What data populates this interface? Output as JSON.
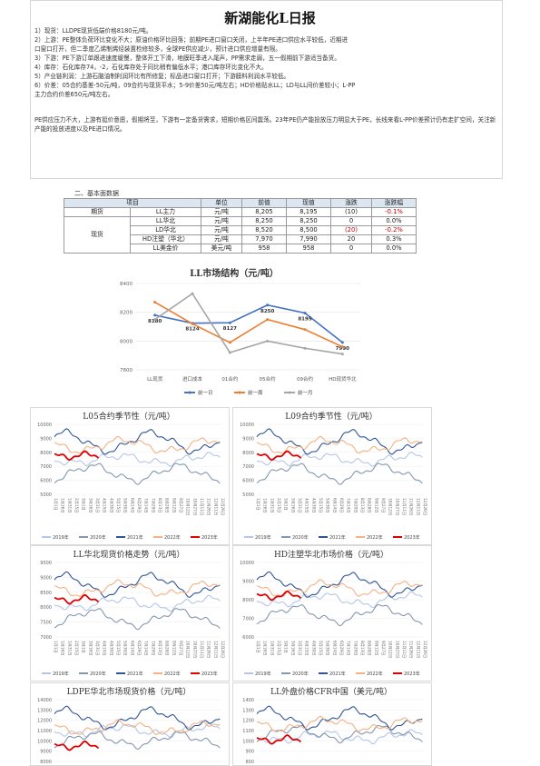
{
  "doc": {
    "title": "新湖能化L日报",
    "lines": [
      "1）现货：LLDPE现货低端价格8180元/吨。",
      "2）上游：PE整体负荷环比变化不大；原油价格环比回落；前期PE进口窗口关闭，上半年PE进口供应水平较低，近期进",
      "口窗口打开，但二季度乙烯制烯烃装置检修较多，全球PE供应减少，预计进口供应增量有限。",
      "3）下游：PE下游订单跟进速度缓慢，整体开工下滑，地膜旺季进入尾声，PP需求走弱，五一假期前下游适当备货。",
      "4）库存：石化库存74，-2，石化库存处于同比稍有偏低水平；港口库存环比变化不大。",
      "5）产业链利润：上游石脑油制利润环比有所修复；标品进口窗口打开；下游膜料利润水平较低。",
      "6）价差：05合约基差-50元/吨，09合约与现货平水；5-9价差50元/吨左右；HD价格贴水LL；LD与LL间价差较小；L-PP",
      "主力合约价差650元/吨左右。"
    ],
    "summary": "PE供应压力不大，上游有挺价意愿，假期将至，下游有一定备货需求，短期价格区间震荡。23年PE仍产能投放压力明显大于PE，长线来看L-PP价差预计仍有走扩空间，关注新产能的投放进度以及PE进口情况。",
    "section": "二、基本面数据"
  },
  "table": {
    "headers": [
      "项目",
      "单位",
      "前值",
      "现值",
      "涨跌",
      "涨跌幅"
    ],
    "futures_label": "期货",
    "spot_label": "现货",
    "rows": [
      {
        "name": "LL主力",
        "unit": "元/吨",
        "prev": "8,205",
        "cur": "8,195",
        "chg": "(10)",
        "pct": "-0.1%",
        "neg": true
      },
      {
        "name": "LL华北",
        "unit": "元/吨",
        "prev": "8,250",
        "cur": "8,250",
        "chg": "0",
        "pct": "0.0%",
        "neg": false
      },
      {
        "name": "LD华北",
        "unit": "元/吨",
        "prev": "8,520",
        "cur": "8,500",
        "chg": "(20)",
        "pct": "-0.2%",
        "neg": true
      },
      {
        "name": "HD注塑（华北）",
        "unit": "元/吨",
        "prev": "7,970",
        "cur": "7,990",
        "chg": "20",
        "pct": "0.3%",
        "neg": false
      },
      {
        "name": "LL美金价",
        "unit": "美元/吨",
        "prev": "958",
        "cur": "958",
        "chg": "0",
        "pct": "0.0%",
        "neg": false
      }
    ]
  },
  "colors": {
    "blue": "#4472c4",
    "orange": "#ed7d31",
    "gray": "#a5a5a5",
    "red": "#e00000"
  },
  "chart_data": [
    {
      "type": "line",
      "title": "LL市场结构（元/吨）",
      "categories": [
        "LL现货",
        "进口成本",
        "01合约",
        "05合约",
        "09合约",
        "HD现货华北"
      ],
      "ylim": [
        7800,
        8400
      ],
      "yticks": [
        "7800",
        "8000",
        "8200",
        "8400"
      ],
      "series": [
        {
          "name": "前一日",
          "color": "#4472c4",
          "values": [
            8180,
            8124,
            8127,
            8250,
            8195,
            7990
          ],
          "labels": [
            "8180",
            "8124",
            "8127",
            "8250",
            "8195",
            "7990"
          ]
        },
        {
          "name": "前一周",
          "color": "#ed7d31",
          "values": [
            8270,
            8120,
            7990,
            8150,
            8080,
            7960
          ]
        },
        {
          "name": "前一月",
          "color": "#a5a5a5",
          "values": [
            8150,
            8330,
            7920,
            8000,
            7950,
            7910
          ]
        }
      ]
    },
    {
      "type": "line",
      "title": "L05合约季节性（元/吨）",
      "yticks": [
        "5000",
        "6000",
        "7000",
        "8000",
        "9000",
        "10000"
      ],
      "legend": [
        "2019年",
        "2020年",
        "2021年",
        "2022年",
        "2023年"
      ]
    },
    {
      "type": "line",
      "title": "L09合约季节性（元/吨）",
      "yticks": [
        "5000",
        "6000",
        "7000",
        "8000",
        "9000",
        "10000"
      ],
      "legend": [
        "2019年",
        "2020年",
        "2021年",
        "2022年",
        "2023年"
      ]
    },
    {
      "type": "line",
      "title": "LL华北现货价格走势（元/吨）",
      "yticks": [
        "7000",
        "7500",
        "8000",
        "8500",
        "9000",
        "9500"
      ],
      "legend": [
        "2019年",
        "2020年",
        "2021年",
        "2022年",
        "2023年"
      ]
    },
    {
      "type": "line",
      "title": "HD注塑华北市场价格（元/吨）",
      "yticks": [
        "6000",
        "7000",
        "8000",
        "9000",
        "10000"
      ],
      "legend": [
        "2019年",
        "2020年",
        "2021年",
        "2022年",
        "2023年"
      ]
    },
    {
      "type": "line",
      "title": "LDPE华北市场现货价格（元/吨）",
      "yticks": [
        "8000",
        "9000",
        "10000",
        "11000",
        "12000",
        "13000",
        "14000"
      ],
      "legend": []
    },
    {
      "type": "line",
      "title": "LL外盘价格CFR中国（美元/吨）",
      "yticks": [
        "800",
        "900",
        "1000",
        "1100",
        "1200",
        "1300",
        "1400"
      ],
      "legend": []
    }
  ],
  "season_xlabels": [
    "1月1日",
    "1月16日",
    "1月31日",
    "2月15日",
    "3月1日",
    "3月16日",
    "3月31日",
    "4月15日",
    "4月30日",
    "5月15日",
    "5月30日",
    "6月14日",
    "6月29日",
    "7月14日",
    "7月29日",
    "8月13日",
    "8月28日",
    "9月12日",
    "9月27日",
    "10月12日",
    "10月27日",
    "11月11日",
    "11月26日",
    "12月11日",
    "12月26日"
  ]
}
